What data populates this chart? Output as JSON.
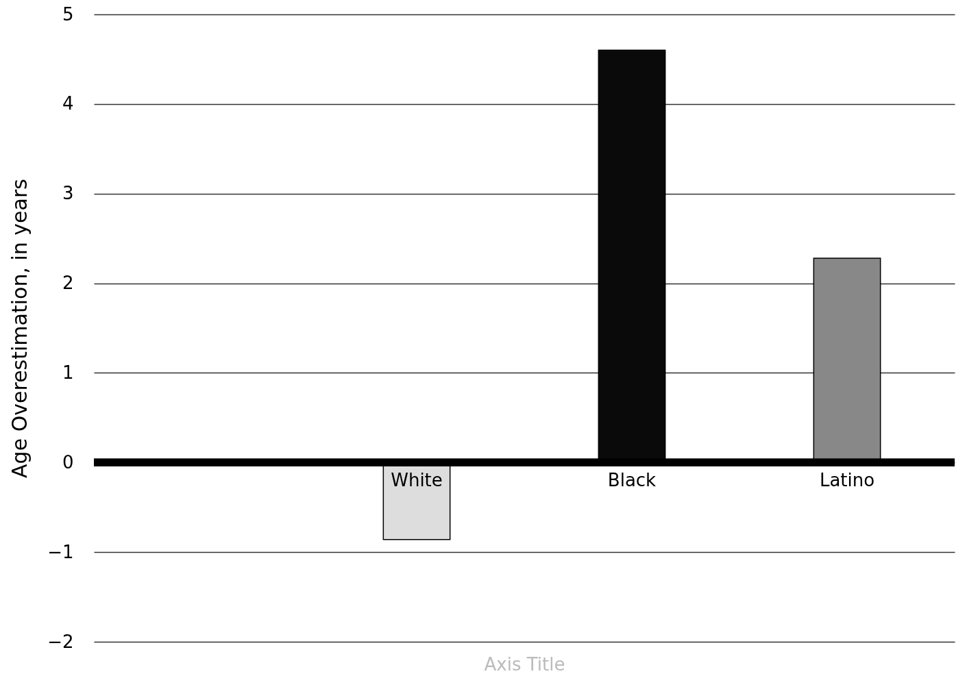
{
  "chart_data": {
    "type": "bar",
    "xlabel": "Axis Title",
    "ylabel": "Age  Overestimation, in years",
    "categories": [
      null,
      "White",
      "Black",
      "Latino"
    ],
    "values": [
      null,
      -0.86,
      4.6,
      2.28
    ],
    "colors": [
      "#dddddd",
      "#dddddd",
      "#0a0a0a",
      "#888888"
    ],
    "ylim": [
      -2,
      5
    ],
    "yticks": [
      -2,
      -1,
      0,
      1,
      2,
      3,
      4,
      5
    ],
    "grid": "y"
  }
}
